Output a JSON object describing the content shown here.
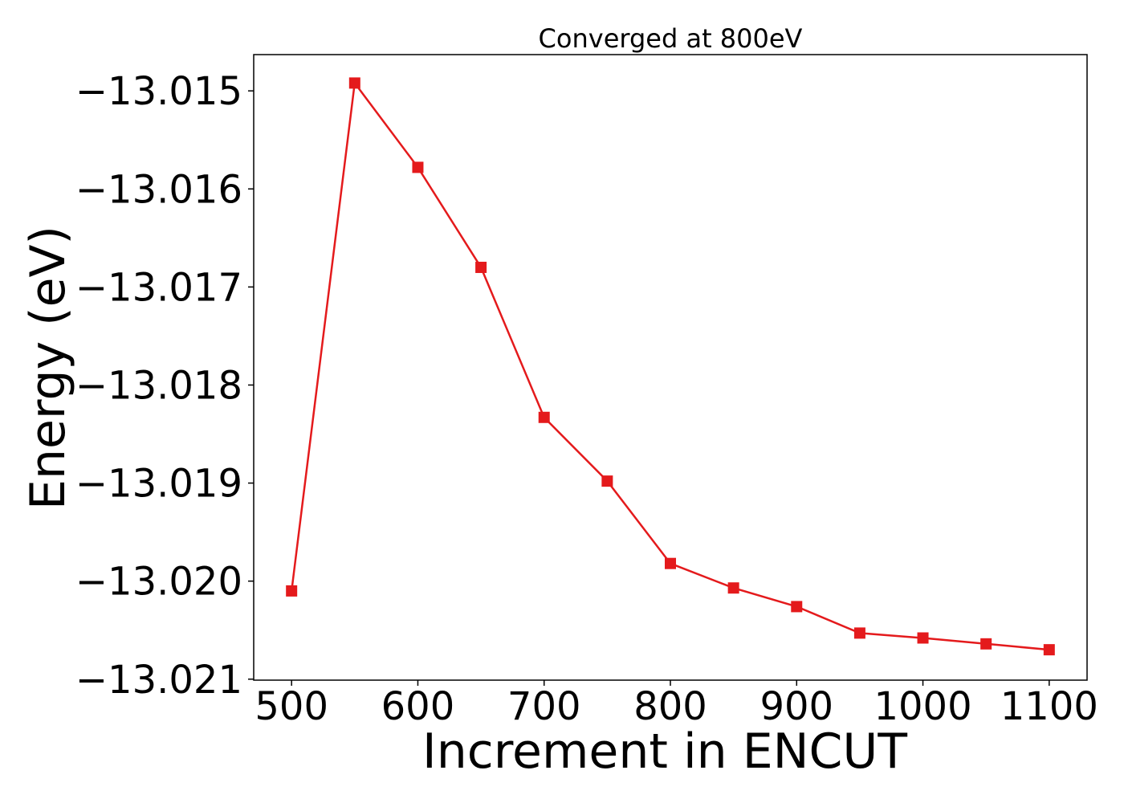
{
  "chart_data": {
    "type": "line",
    "title": "Converged at 800eV",
    "xlabel": "Increment in ENCUT",
    "ylabel": "Energy (eV)",
    "xlim": [
      470,
      1130
    ],
    "ylim": [
      -13.02101,
      -13.01463
    ],
    "x_ticks": [
      500,
      600,
      700,
      800,
      900,
      1000,
      1100
    ],
    "x_tick_labels": [
      "500",
      "600",
      "700",
      "800",
      "900",
      "1000",
      "1100"
    ],
    "y_ticks": [
      -13.015,
      -13.016,
      -13.017,
      -13.018,
      -13.019,
      -13.02,
      -13.021
    ],
    "y_tick_labels": [
      "−13.015",
      "−13.016",
      "−13.017",
      "−13.018",
      "−13.019",
      "−13.020",
      "−13.021"
    ],
    "grid": false,
    "legend": "none",
    "series": [
      {
        "color": "#e41a1c",
        "marker": "square",
        "x": [
          500,
          550,
          600,
          650,
          700,
          750,
          800,
          850,
          900,
          950,
          1000,
          1050,
          1100
        ],
        "y": [
          -13.0201,
          -13.01492,
          -13.01578,
          -13.0168,
          -13.01833,
          -13.01898,
          -13.01982,
          -13.02007,
          -13.02026,
          -13.02053,
          -13.02058,
          -13.02064,
          -13.0207
        ]
      }
    ]
  }
}
